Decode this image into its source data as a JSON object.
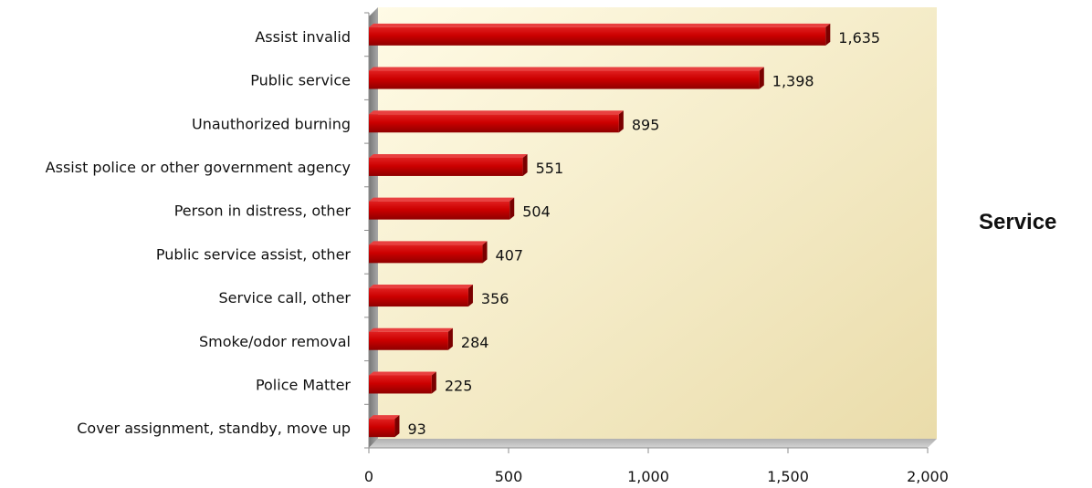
{
  "side_title": "Service",
  "chart_data": {
    "type": "bar",
    "orientation": "horizontal",
    "categories": [
      "Assist invalid",
      "Public service",
      "Unauthorized burning",
      "Assist police or other government agency",
      "Person in distress, other",
      "Public service assist, other",
      "Service call, other",
      "Smoke/odor removal",
      "Police Matter",
      "Cover assignment, standby, move up"
    ],
    "values": [
      1635,
      1398,
      895,
      551,
      504,
      407,
      356,
      284,
      225,
      93
    ],
    "value_labels": [
      "1,635",
      "1,398",
      "895",
      "551",
      "504",
      "407",
      "356",
      "284",
      "225",
      "93"
    ],
    "xlim": [
      0,
      2000
    ],
    "xticks": [
      0,
      500,
      1000,
      1500,
      2000
    ],
    "xtick_labels": [
      "0",
      "500",
      "1,000",
      "1,500",
      "2,000"
    ],
    "title": "",
    "xlabel": "",
    "ylabel": "",
    "grid": false,
    "legend": "none",
    "colors": {
      "bar": "#cc0000",
      "bar_dark": "#8a0000",
      "background_top": "#fdf7d6",
      "background_bottom": "#efe3b4",
      "axis": "#8c8c8c"
    }
  }
}
